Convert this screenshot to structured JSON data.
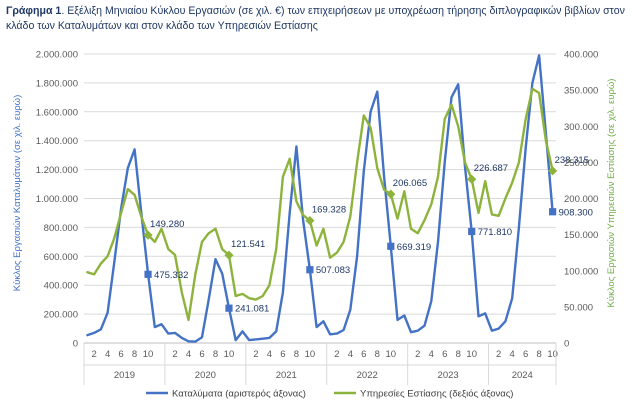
{
  "title": {
    "prefix": "Γράφημα 1",
    "text": ". Εξέλιξη Μηνιαίου Κύκλου Εργασιών (σε χιλ. €) των επιχειρήσεων με υποχρέωση τήρησης διπλογραφικών βιβλίων στον κλάδο των Καταλυμάτων και στον κλάδο των Υπηρεσιών Εστίασης"
  },
  "colors": {
    "accommodation": "#4472c4",
    "food": "#8db33c",
    "left_axis_label": "#4472c4",
    "right_axis_label": "#70ad47",
    "grid": "#d9d9d9",
    "tick_text": "#595959",
    "annotation_text": "#1f3864"
  },
  "chart_data": {
    "type": "line",
    "x_tick_labels": [
      "2",
      "4",
      "6",
      "8",
      "10"
    ],
    "years": [
      "2019",
      "2020",
      "2021",
      "2022",
      "2023",
      "2024"
    ],
    "y_left": {
      "label": "Κύκλος Εργασιών Καταλυμάτων (σε χιλ. ευρώ)",
      "ticks": [
        "0",
        "200.000",
        "400.000",
        "600.000",
        "800.000",
        "1.000.000",
        "1.200.000",
        "1.400.000",
        "1.600.000",
        "1.800.000",
        "2.000.000"
      ],
      "ylim": [
        0,
        2000000
      ]
    },
    "y_right": {
      "label": "Κύκλος Εργασιών Υπηρεσιών Εστίασης (σε χιλ. ευρώ)",
      "ticks": [
        "0",
        "50.000",
        "100.000",
        "150.000",
        "200.000",
        "250.000",
        "300.000",
        "350.000",
        "400.000"
      ],
      "ylim": [
        0,
        400000
      ]
    },
    "series": [
      {
        "name": "Καταλύματα (αριστερός άξονας)",
        "axis": "left",
        "values": [
          55000,
          70000,
          95000,
          210000,
          560000,
          930000,
          1210000,
          1340000,
          900000,
          475332,
          110000,
          130000,
          65000,
          70000,
          35000,
          12000,
          10000,
          40000,
          300000,
          580000,
          480000,
          241081,
          20000,
          80000,
          20000,
          25000,
          30000,
          35000,
          80000,
          350000,
          900000,
          1360000,
          850000,
          507083,
          110000,
          150000,
          60000,
          65000,
          90000,
          230000,
          600000,
          1190000,
          1600000,
          1740000,
          1150000,
          669319,
          160000,
          190000,
          75000,
          85000,
          120000,
          290000,
          700000,
          1250000,
          1700000,
          1790000,
          1220000,
          771810,
          185000,
          205000,
          85000,
          100000,
          150000,
          310000,
          800000,
          1350000,
          1800000,
          1990000,
          1450000,
          908300
        ]
      },
      {
        "name": "Υπηρεσίες Εστίασης (δεξιός άξονας)",
        "axis": "right",
        "values": [
          98000,
          95000,
          110000,
          120000,
          145000,
          180000,
          213000,
          205000,
          175000,
          149280,
          140000,
          158000,
          130000,
          122000,
          70000,
          32000,
          95000,
          140000,
          152000,
          158000,
          130000,
          121541,
          65000,
          68000,
          62000,
          60000,
          65000,
          80000,
          130000,
          230000,
          255000,
          196000,
          177000,
          169328,
          135000,
          158000,
          118000,
          125000,
          140000,
          175000,
          250000,
          315000,
          298000,
          242000,
          212000,
          206065,
          172000,
          210000,
          158000,
          152000,
          170000,
          192000,
          230000,
          310000,
          330000,
          300000,
          250000,
          226687,
          180000,
          224000,
          178000,
          176000,
          200000,
          222000,
          250000,
          310000,
          352000,
          346000,
          280000,
          238315
        ]
      }
    ],
    "annotations": [
      {
        "series": 0,
        "index": 9,
        "text": "475.332"
      },
      {
        "series": 0,
        "index": 21,
        "text": "241.081"
      },
      {
        "series": 0,
        "index": 33,
        "text": "507.083"
      },
      {
        "series": 0,
        "index": 45,
        "text": "669.319"
      },
      {
        "series": 0,
        "index": 57,
        "text": "771.810"
      },
      {
        "series": 0,
        "index": 69,
        "text": "908.300"
      },
      {
        "series": 1,
        "index": 9,
        "text": "149.280"
      },
      {
        "series": 1,
        "index": 21,
        "text": "121.541"
      },
      {
        "series": 1,
        "index": 33,
        "text": "169.328"
      },
      {
        "series": 1,
        "index": 45,
        "text": "206.065"
      },
      {
        "series": 1,
        "index": 57,
        "text": "226.687"
      },
      {
        "series": 1,
        "index": 69,
        "text": "238.315"
      }
    ],
    "legend_position": "bottom",
    "grid": true
  }
}
